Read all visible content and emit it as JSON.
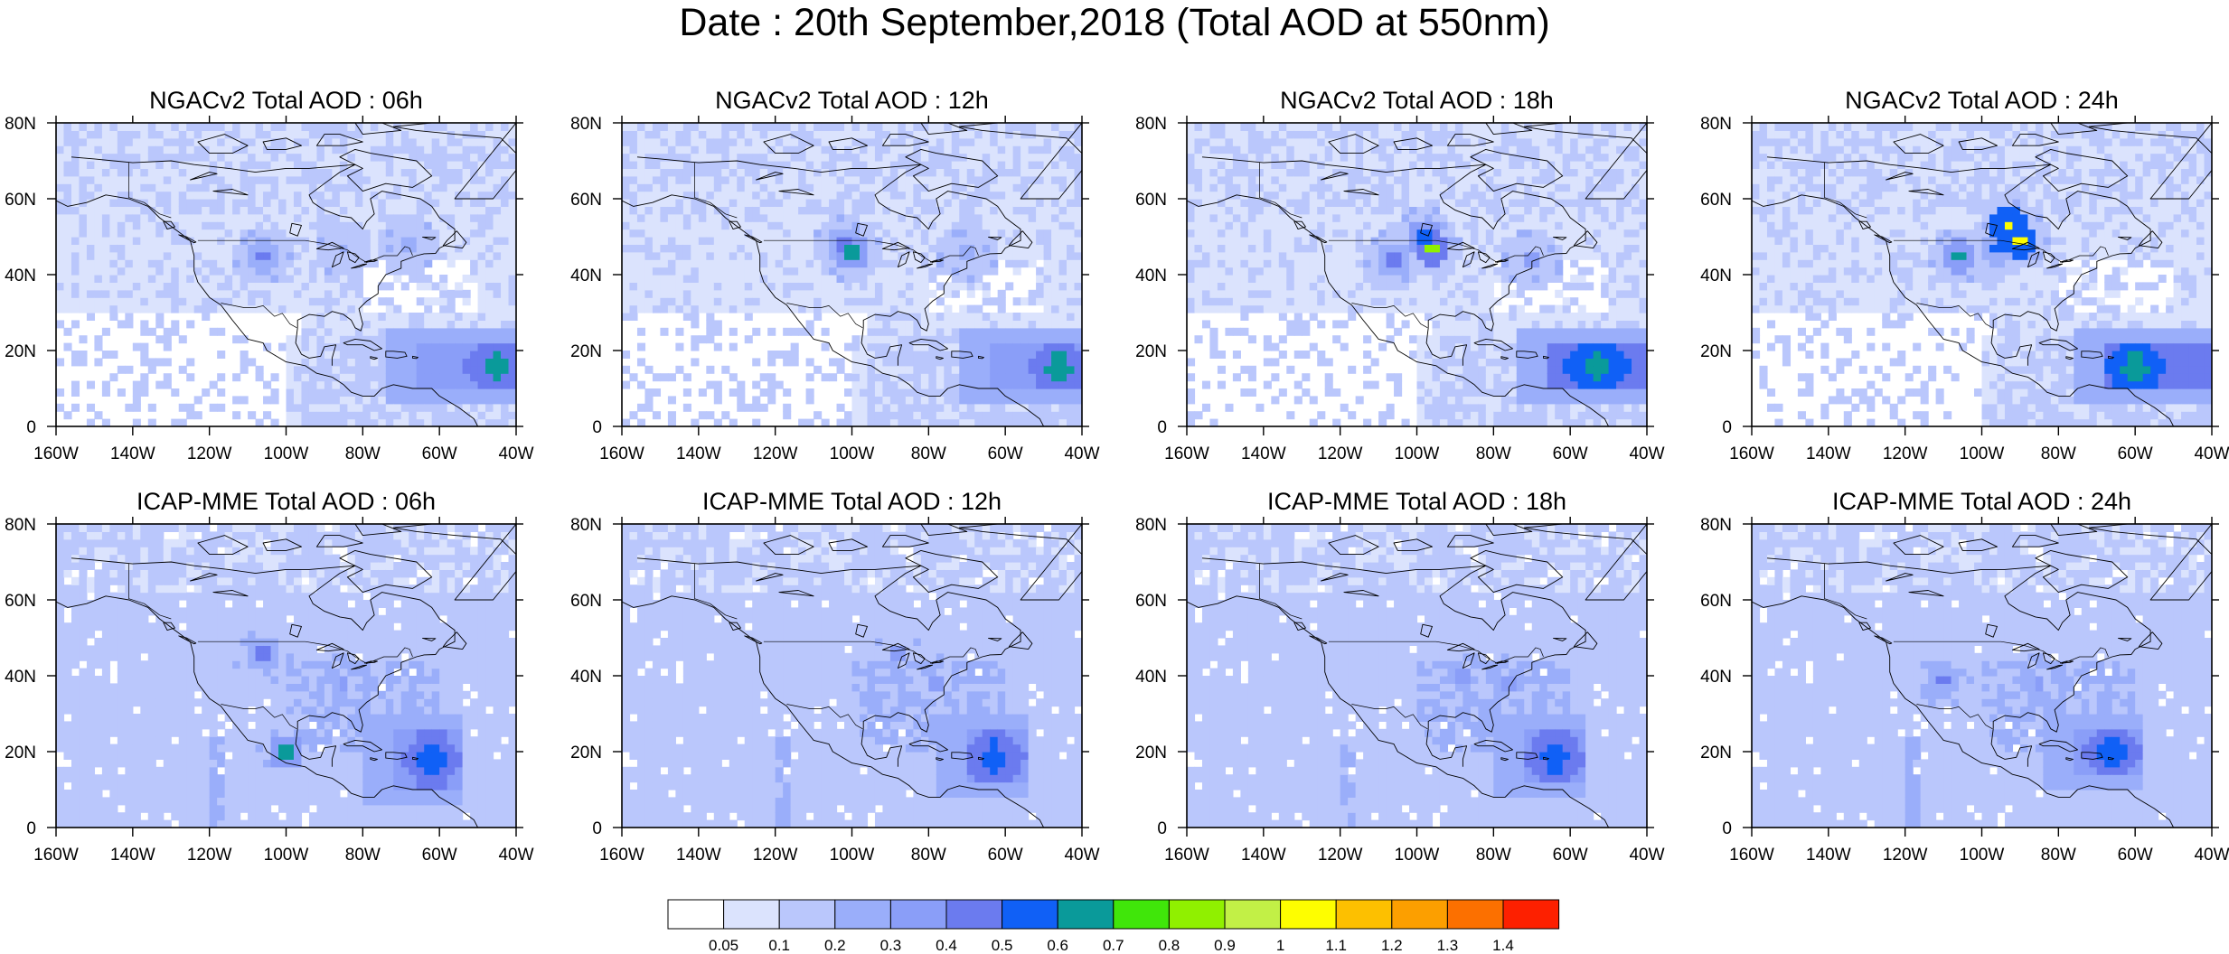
{
  "title": "Date : 20th September,2018 (Total AOD at 550nm)",
  "panels": [
    {
      "title": "NGACv2 Total AOD : 06h",
      "model": "NGACv2",
      "hour": "06h",
      "plumes": [
        {
          "lon": -106,
          "lat": 45,
          "v": 0.45
        },
        {
          "lon": -85,
          "lat": 47,
          "v": 0.22
        },
        {
          "lon": -68,
          "lat": 48,
          "v": 0.2
        }
      ],
      "box": {
        "lon1": -65,
        "lon2": -40,
        "lat1": 11,
        "lat2": 21,
        "v": 0.45,
        "core": 0.62,
        "coreLon": -45
      }
    },
    {
      "title": "NGACv2 Total AOD : 12h",
      "model": "NGACv2",
      "hour": "12h",
      "plumes": [
        {
          "lon": -102,
          "lat": 48,
          "v": 0.48
        },
        {
          "lon": -100,
          "lat": 46,
          "v": 0.62
        },
        {
          "lon": -70,
          "lat": 46,
          "v": 0.25
        }
      ],
      "box": {
        "lon1": -63,
        "lon2": -40,
        "lat1": 10,
        "lat2": 21,
        "v": 0.45,
        "core": 0.62,
        "coreLon": -46
      }
    },
    {
      "title": "NGACv2 Total AOD : 18h",
      "model": "NGACv2",
      "hour": "18h",
      "plumes": [
        {
          "lon": -98,
          "lat": 50,
          "v": 0.55
        },
        {
          "lon": -96,
          "lat": 47,
          "v": 0.85
        },
        {
          "lon": -106,
          "lat": 44,
          "v": 0.42
        },
        {
          "lon": -70,
          "lat": 44,
          "v": 0.3
        }
      ],
      "box": {
        "lon1": -66,
        "lon2": -40,
        "lat1": 11,
        "lat2": 21,
        "v": 0.5,
        "core": 0.62,
        "coreLon": -53
      }
    },
    {
      "title": "NGACv2 Total AOD : 24h",
      "model": "NGACv2",
      "hour": "24h",
      "plumes": [
        {
          "lon": -93,
          "lat": 53,
          "v": 1.05
        },
        {
          "lon": -90,
          "lat": 49,
          "v": 1.02
        },
        {
          "lon": -106,
          "lat": 45,
          "v": 0.65
        },
        {
          "lon": -96,
          "lat": 47,
          "v": 0.5
        }
      ],
      "box": {
        "lon1": -68,
        "lon2": -40,
        "lat1": 10,
        "lat2": 21,
        "v": 0.5,
        "core": 0.62,
        "coreLon": -60
      }
    },
    {
      "title": "ICAP-MME Total AOD : 06h",
      "model": "ICAP-MME",
      "hour": "06h",
      "plumes": [
        {
          "lon": -106,
          "lat": 46,
          "v": 0.45
        },
        {
          "lon": -100,
          "lat": 20,
          "v": 0.65
        },
        {
          "lon": -85,
          "lat": 38,
          "v": 0.35
        }
      ],
      "box": {
        "lon1": -72,
        "lon2": -54,
        "lat1": 10,
        "lat2": 26,
        "v": 0.45,
        "core": 0.58,
        "coreLon": -62
      }
    },
    {
      "title": "ICAP-MME Total AOD : 12h",
      "model": "ICAP-MME",
      "hour": "12h",
      "plumes": [
        {
          "lon": -88,
          "lat": 46,
          "v": 0.35
        },
        {
          "lon": -78,
          "lat": 38,
          "v": 0.3
        }
      ],
      "box": {
        "lon1": -70,
        "lon2": -55,
        "lat1": 12,
        "lat2": 25,
        "v": 0.42,
        "core": 0.5,
        "coreLon": -63
      }
    },
    {
      "title": "ICAP-MME Total AOD : 18h",
      "model": "ICAP-MME",
      "hour": "18h",
      "plumes": [
        {
          "lon": -88,
          "lat": 40,
          "v": 0.32
        },
        {
          "lon": -76,
          "lat": 38,
          "v": 0.3
        }
      ],
      "box": {
        "lon1": -72,
        "lon2": -56,
        "lat1": 12,
        "lat2": 25,
        "v": 0.42,
        "core": 0.5,
        "coreLon": -64
      }
    },
    {
      "title": "ICAP-MME Total AOD : 24h",
      "model": "ICAP-MME",
      "hour": "24h",
      "plumes": [
        {
          "lon": -110,
          "lat": 39,
          "v": 0.42
        },
        {
          "lon": -85,
          "lat": 38,
          "v": 0.32
        }
      ],
      "box": {
        "lon1": -75,
        "lon2": -58,
        "lat1": 14,
        "lat2": 26,
        "v": 0.42,
        "core": 0.5,
        "coreLon": -66
      }
    }
  ],
  "axes": {
    "x_ticks": [
      "160W",
      "140W",
      "120W",
      "100W",
      "80W",
      "60W",
      "40W"
    ],
    "x_values": [
      -160,
      -140,
      -120,
      -100,
      -80,
      -60,
      -40
    ],
    "y_ticks": [
      "0",
      "20N",
      "40N",
      "60N",
      "80N"
    ],
    "y_values": [
      0,
      20,
      40,
      60,
      80
    ],
    "lon_range": [
      -160,
      -40
    ],
    "lat_range": [
      0,
      80
    ]
  },
  "colorbar": {
    "labels": [
      "0.05",
      "0.1",
      "0.2",
      "0.3",
      "0.4",
      "0.5",
      "0.6",
      "0.7",
      "0.8",
      "0.9",
      "1",
      "1.1",
      "1.2",
      "1.3",
      "1.4"
    ],
    "levels": [
      0.05,
      0.1,
      0.2,
      0.3,
      0.4,
      0.5,
      0.6,
      0.7,
      0.8,
      0.9,
      1,
      1.1,
      1.2,
      1.3,
      1.4
    ],
    "colors": [
      "#ffffff",
      "#dbe3fd",
      "#bac7fc",
      "#9aaefa",
      "#8a9ef8",
      "#6b7bef",
      "#1060f6",
      "#0a9a9a",
      "#40e60a",
      "#90f000",
      "#c2f046",
      "#fefe00",
      "#fdc000",
      "#fc9f00",
      "#fc7000",
      "#fd2000"
    ]
  }
}
